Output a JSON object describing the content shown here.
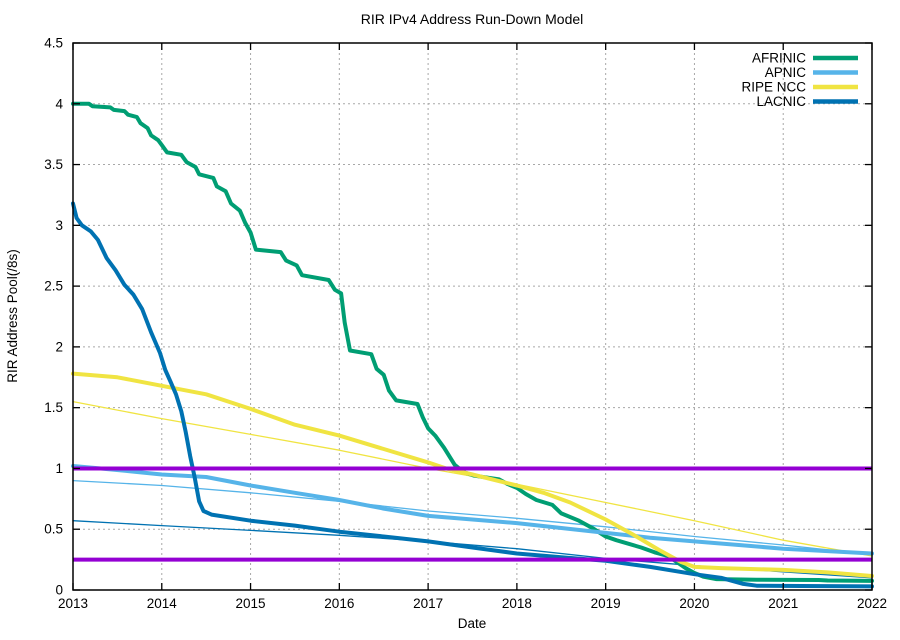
{
  "chart_data": {
    "type": "line",
    "title": "RIR IPv4 Address Run-Down Model",
    "xlabel": "Date",
    "ylabel": "RIR Address Pool(/8s)",
    "xlim": [
      2013,
      2022
    ],
    "ylim": [
      0,
      4.5
    ],
    "x_ticks": [
      2013,
      2014,
      2015,
      2016,
      2017,
      2018,
      2019,
      2020,
      2021,
      2022
    ],
    "y_ticks": [
      0,
      0.5,
      1,
      1.5,
      2,
      2.5,
      3,
      3.5,
      4,
      4.5
    ],
    "grid": true,
    "legend_position": "top-right-inside",
    "colors": {
      "afrinic": "#009E73",
      "apnic": "#56B4E9",
      "ripe_ncc": "#F0E442",
      "lacnic": "#0072B2",
      "threshold": "#9400D3",
      "grid": "#a8a8a8"
    },
    "series": [
      {
        "name": "APNIC model",
        "color": "#56B4E9",
        "width": 1.3,
        "legend": false,
        "points": [
          [
            2013,
            0.9
          ],
          [
            2014,
            0.86
          ],
          [
            2015,
            0.8
          ],
          [
            2016,
            0.73
          ],
          [
            2017,
            0.65
          ],
          [
            2018,
            0.59
          ],
          [
            2019,
            0.52
          ],
          [
            2020,
            0.44
          ],
          [
            2021,
            0.37
          ],
          [
            2022,
            0.29
          ]
        ]
      },
      {
        "name": "RIPE NCC model",
        "color": "#F0E442",
        "width": 1.3,
        "legend": false,
        "points": [
          [
            2013,
            1.55
          ],
          [
            2014,
            1.41
          ],
          [
            2015,
            1.28
          ],
          [
            2016,
            1.15
          ],
          [
            2017,
            1.0
          ],
          [
            2018,
            0.87
          ],
          [
            2019,
            0.72
          ],
          [
            2020,
            0.57
          ],
          [
            2021,
            0.41
          ],
          [
            2022,
            0.28
          ]
        ]
      },
      {
        "name": "LACNIC model",
        "color": "#0072B2",
        "width": 1.3,
        "legend": false,
        "points": [
          [
            2013,
            0.57
          ],
          [
            2014,
            0.53
          ],
          [
            2015,
            0.49
          ],
          [
            2016,
            0.45
          ],
          [
            2017,
            0.4
          ],
          [
            2018,
            0.34
          ],
          [
            2019,
            0.26
          ],
          [
            2020,
            0.2
          ],
          [
            2021,
            0.15
          ],
          [
            2022,
            0.1
          ]
        ]
      },
      {
        "name": "AFRINIC",
        "color": "#009E73",
        "width": 4,
        "legend": true,
        "points": [
          [
            2013.0,
            4.0
          ],
          [
            2013.18,
            4.0
          ],
          [
            2013.22,
            3.98
          ],
          [
            2013.42,
            3.97
          ],
          [
            2013.46,
            3.95
          ],
          [
            2013.58,
            3.94
          ],
          [
            2013.62,
            3.91
          ],
          [
            2013.72,
            3.89
          ],
          [
            2013.76,
            3.84
          ],
          [
            2013.84,
            3.8
          ],
          [
            2013.88,
            3.74
          ],
          [
            2013.96,
            3.7
          ],
          [
            2014.0,
            3.66
          ],
          [
            2014.06,
            3.6
          ],
          [
            2014.22,
            3.58
          ],
          [
            2014.28,
            3.52
          ],
          [
            2014.38,
            3.48
          ],
          [
            2014.42,
            3.42
          ],
          [
            2014.58,
            3.39
          ],
          [
            2014.62,
            3.32
          ],
          [
            2014.72,
            3.28
          ],
          [
            2014.78,
            3.18
          ],
          [
            2014.88,
            3.12
          ],
          [
            2014.94,
            3.02
          ],
          [
            2015.0,
            2.94
          ],
          [
            2015.06,
            2.8
          ],
          [
            2015.34,
            2.78
          ],
          [
            2015.4,
            2.71
          ],
          [
            2015.52,
            2.67
          ],
          [
            2015.58,
            2.59
          ],
          [
            2015.88,
            2.55
          ],
          [
            2015.95,
            2.47
          ],
          [
            2016.02,
            2.44
          ],
          [
            2016.06,
            2.2
          ],
          [
            2016.12,
            1.97
          ],
          [
            2016.36,
            1.94
          ],
          [
            2016.42,
            1.82
          ],
          [
            2016.5,
            1.77
          ],
          [
            2016.56,
            1.64
          ],
          [
            2016.64,
            1.56
          ],
          [
            2016.88,
            1.53
          ],
          [
            2016.94,
            1.42
          ],
          [
            2017.0,
            1.33
          ],
          [
            2017.08,
            1.27
          ],
          [
            2017.18,
            1.17
          ],
          [
            2017.3,
            1.03
          ],
          [
            2017.4,
            0.97
          ],
          [
            2017.52,
            0.94
          ],
          [
            2017.8,
            0.91
          ],
          [
            2017.9,
            0.87
          ],
          [
            2018.0,
            0.84
          ],
          [
            2018.1,
            0.79
          ],
          [
            2018.22,
            0.74
          ],
          [
            2018.4,
            0.7
          ],
          [
            2018.5,
            0.63
          ],
          [
            2018.7,
            0.57
          ],
          [
            2018.85,
            0.51
          ],
          [
            2019.0,
            0.44
          ],
          [
            2019.12,
            0.41
          ],
          [
            2019.26,
            0.38
          ],
          [
            2019.4,
            0.35
          ],
          [
            2019.55,
            0.31
          ],
          [
            2019.7,
            0.28
          ],
          [
            2019.8,
            0.23
          ],
          [
            2019.9,
            0.18
          ],
          [
            2020.0,
            0.14
          ],
          [
            2020.1,
            0.11
          ],
          [
            2020.25,
            0.09
          ],
          [
            2020.7,
            0.085
          ],
          [
            2021.4,
            0.082
          ],
          [
            2021.5,
            0.078
          ],
          [
            2022.0,
            0.075
          ]
        ]
      },
      {
        "name": "APNIC",
        "color": "#56B4E9",
        "width": 4,
        "legend": true,
        "points": [
          [
            2013.0,
            1.02
          ],
          [
            2013.3,
            1.0
          ],
          [
            2013.6,
            0.98
          ],
          [
            2014.0,
            0.95
          ],
          [
            2014.5,
            0.93
          ],
          [
            2015.0,
            0.86
          ],
          [
            2015.5,
            0.8
          ],
          [
            2016.0,
            0.74
          ],
          [
            2016.5,
            0.67
          ],
          [
            2017.0,
            0.61
          ],
          [
            2017.5,
            0.58
          ],
          [
            2018.0,
            0.55
          ],
          [
            2018.5,
            0.51
          ],
          [
            2019.0,
            0.47
          ],
          [
            2019.5,
            0.43
          ],
          [
            2020.0,
            0.4
          ],
          [
            2020.5,
            0.37
          ],
          [
            2021.0,
            0.34
          ],
          [
            2021.5,
            0.32
          ],
          [
            2022.0,
            0.3
          ]
        ]
      },
      {
        "name": "RIPE NCC",
        "color": "#F0E442",
        "width": 4,
        "legend": true,
        "points": [
          [
            2013.0,
            1.78
          ],
          [
            2013.5,
            1.75
          ],
          [
            2014.0,
            1.68
          ],
          [
            2014.5,
            1.61
          ],
          [
            2015.0,
            1.49
          ],
          [
            2015.5,
            1.36
          ],
          [
            2016.0,
            1.27
          ],
          [
            2016.5,
            1.16
          ],
          [
            2017.0,
            1.05
          ],
          [
            2017.2,
            1.0
          ],
          [
            2017.5,
            0.95
          ],
          [
            2018.0,
            0.86
          ],
          [
            2018.3,
            0.8
          ],
          [
            2018.6,
            0.72
          ],
          [
            2019.0,
            0.58
          ],
          [
            2019.3,
            0.46
          ],
          [
            2019.6,
            0.33
          ],
          [
            2019.85,
            0.23
          ],
          [
            2020.0,
            0.19
          ],
          [
            2020.3,
            0.18
          ],
          [
            2021.0,
            0.165
          ],
          [
            2021.5,
            0.145
          ],
          [
            2022.0,
            0.115
          ]
        ]
      },
      {
        "name": "LACNIC",
        "color": "#0072B2",
        "width": 4,
        "legend": true,
        "points": [
          [
            2013.0,
            3.18
          ],
          [
            2013.04,
            3.06
          ],
          [
            2013.1,
            3.0
          ],
          [
            2013.2,
            2.95
          ],
          [
            2013.28,
            2.88
          ],
          [
            2013.38,
            2.73
          ],
          [
            2013.48,
            2.63
          ],
          [
            2013.58,
            2.51
          ],
          [
            2013.68,
            2.43
          ],
          [
            2013.78,
            2.31
          ],
          [
            2013.88,
            2.12
          ],
          [
            2013.98,
            1.95
          ],
          [
            2014.04,
            1.81
          ],
          [
            2014.1,
            1.71
          ],
          [
            2014.16,
            1.61
          ],
          [
            2014.22,
            1.47
          ],
          [
            2014.27,
            1.3
          ],
          [
            2014.32,
            1.1
          ],
          [
            2014.37,
            0.93
          ],
          [
            2014.42,
            0.73
          ],
          [
            2014.47,
            0.65
          ],
          [
            2014.56,
            0.62
          ],
          [
            2015.0,
            0.57
          ],
          [
            2015.5,
            0.53
          ],
          [
            2016.0,
            0.48
          ],
          [
            2016.5,
            0.44
          ],
          [
            2017.0,
            0.4
          ],
          [
            2017.5,
            0.35
          ],
          [
            2018.0,
            0.3
          ],
          [
            2018.5,
            0.27
          ],
          [
            2019.0,
            0.24
          ],
          [
            2019.5,
            0.19
          ],
          [
            2020.0,
            0.13
          ],
          [
            2020.3,
            0.1
          ],
          [
            2020.55,
            0.05
          ],
          [
            2020.7,
            0.035
          ],
          [
            2021.2,
            0.033
          ],
          [
            2022.0,
            0.03
          ]
        ]
      }
    ],
    "hlines": [
      {
        "y": 1.0,
        "color": "#9400D3",
        "width": 4
      },
      {
        "y": 0.25,
        "color": "#9400D3",
        "width": 4
      }
    ]
  }
}
